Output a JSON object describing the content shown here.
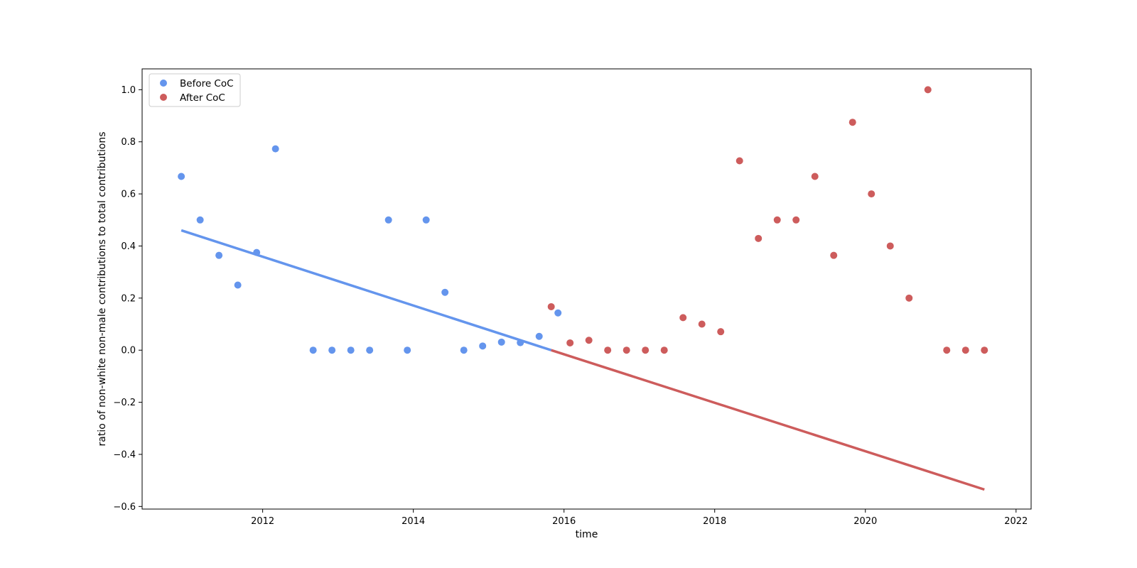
{
  "chart_data": {
    "type": "scatter",
    "title": "",
    "xlabel": "time",
    "ylabel": "ratio of non-white non-male contributions to total contributions",
    "xlim": [
      2010.4,
      2022.2
    ],
    "ylim": [
      -0.61,
      1.08
    ],
    "xticks": [
      2012,
      2014,
      2016,
      2018,
      2020,
      2022
    ],
    "yticks": [
      -0.6,
      -0.4,
      -0.2,
      0.0,
      0.2,
      0.4,
      0.6,
      0.8,
      1.0
    ],
    "ytick_labels": [
      "−0.6",
      "−0.4",
      "−0.2",
      "0.0",
      "0.2",
      "0.4",
      "0.6",
      "0.8",
      "1.0"
    ],
    "grid": false,
    "legend_position": "upper-left",
    "series": [
      {
        "name": "Before CoC",
        "color": "#6495ed",
        "points": [
          [
            2010.92,
            0.667
          ],
          [
            2011.17,
            0.5
          ],
          [
            2011.42,
            0.364
          ],
          [
            2011.67,
            0.25
          ],
          [
            2011.92,
            0.375
          ],
          [
            2012.17,
            0.773
          ],
          [
            2012.67,
            0.0
          ],
          [
            2012.92,
            0.0
          ],
          [
            2013.17,
            0.0
          ],
          [
            2013.42,
            0.0
          ],
          [
            2013.67,
            0.5
          ],
          [
            2013.92,
            0.0
          ],
          [
            2014.17,
            0.5
          ],
          [
            2014.42,
            0.222
          ],
          [
            2014.67,
            0.0
          ],
          [
            2014.92,
            0.016
          ],
          [
            2015.17,
            0.031
          ],
          [
            2015.42,
            0.029
          ],
          [
            2015.67,
            0.053
          ],
          [
            2015.92,
            0.143
          ]
        ],
        "trend": [
          [
            2010.92,
            0.46
          ],
          [
            2015.83,
            0.0
          ]
        ]
      },
      {
        "name": "After CoC",
        "color": "#cd5c5c",
        "points": [
          [
            2015.83,
            0.167
          ],
          [
            2016.08,
            0.028
          ],
          [
            2016.33,
            0.038
          ],
          [
            2016.58,
            0.0
          ],
          [
            2016.83,
            0.0
          ],
          [
            2017.08,
            0.0
          ],
          [
            2017.33,
            0.0
          ],
          [
            2017.58,
            0.125
          ],
          [
            2017.83,
            0.1
          ],
          [
            2018.08,
            0.071
          ],
          [
            2018.33,
            0.727
          ],
          [
            2018.58,
            0.429
          ],
          [
            2018.83,
            0.5
          ],
          [
            2019.08,
            0.5
          ],
          [
            2019.33,
            0.667
          ],
          [
            2019.58,
            0.364
          ],
          [
            2019.83,
            0.875
          ],
          [
            2020.08,
            0.6
          ],
          [
            2020.33,
            0.4
          ],
          [
            2020.58,
            0.2
          ],
          [
            2020.83,
            1.0
          ],
          [
            2021.08,
            0.0
          ],
          [
            2021.33,
            0.0
          ],
          [
            2021.58,
            0.0
          ]
        ],
        "trend": [
          [
            2015.83,
            0.0
          ],
          [
            2021.58,
            -0.535
          ]
        ]
      }
    ]
  }
}
